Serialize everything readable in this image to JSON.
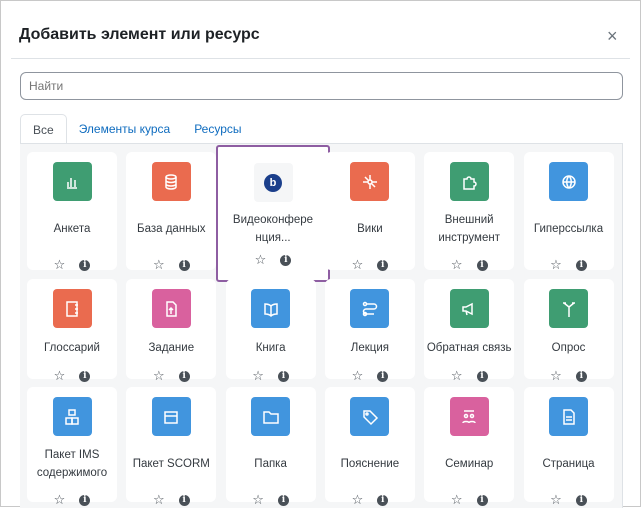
{
  "dialog": {
    "title": "Добавить элемент или ресурс",
    "close": "×"
  },
  "search": {
    "placeholder": "Найти",
    "value": ""
  },
  "tabs": [
    {
      "label": "Все",
      "active": true
    },
    {
      "label": "Элементы курса"
    },
    {
      "label": "Ресурсы"
    }
  ],
  "actions": {
    "star": "☆",
    "info": "i"
  },
  "colors": {
    "assessment": "#399b6f",
    "collaboration": "#e8684a",
    "content": "#3e95de",
    "communication": "#d9609d",
    "selected_border": "#8e5ea2",
    "bbb": "#1b3f8b"
  },
  "items": [
    {
      "label": "Анкета",
      "icon": "bar-chart-icon",
      "color": "#3f9d72"
    },
    {
      "label": "База данных",
      "icon": "database-icon",
      "color": "#ea6b4f"
    },
    {
      "label": "Видеоконфере нция...",
      "icon": "bigbluebutton-icon",
      "color": "#f5f6f7",
      "selected": true
    },
    {
      "label": "Вики",
      "icon": "wiki-network-icon",
      "color": "#ea6b4f"
    },
    {
      "label": "Внешний инструмент",
      "icon": "puzzle-icon",
      "color": "#3f9d72"
    },
    {
      "label": "Гиперссылка",
      "icon": "globe-icon",
      "color": "#4195de"
    },
    {
      "label": "Глоссарий",
      "icon": "notebook-icon",
      "color": "#ea6b4f"
    },
    {
      "label": "Задание",
      "icon": "assignment-upload-icon",
      "color": "#d9619e"
    },
    {
      "label": "Книга",
      "icon": "book-icon",
      "color": "#4195de"
    },
    {
      "label": "Лекция",
      "icon": "lesson-path-icon",
      "color": "#4195de"
    },
    {
      "label": "Обратная связь",
      "icon": "megaphone-icon",
      "color": "#3f9d72"
    },
    {
      "label": "Опрос",
      "icon": "signpost-icon",
      "color": "#3f9d72"
    },
    {
      "label": "Пакет IMS содержимого",
      "icon": "boxes-icon",
      "color": "#4195de"
    },
    {
      "label": "Пакет SCORM",
      "icon": "package-icon",
      "color": "#4195de"
    },
    {
      "label": "Папка",
      "icon": "folder-icon",
      "color": "#4195de"
    },
    {
      "label": "Пояснение",
      "icon": "tag-icon",
      "color": "#4195de"
    },
    {
      "label": "Семинар",
      "icon": "workshop-icon",
      "color": "#d9619e"
    },
    {
      "label": "Страница",
      "icon": "page-icon",
      "color": "#4195de"
    }
  ]
}
